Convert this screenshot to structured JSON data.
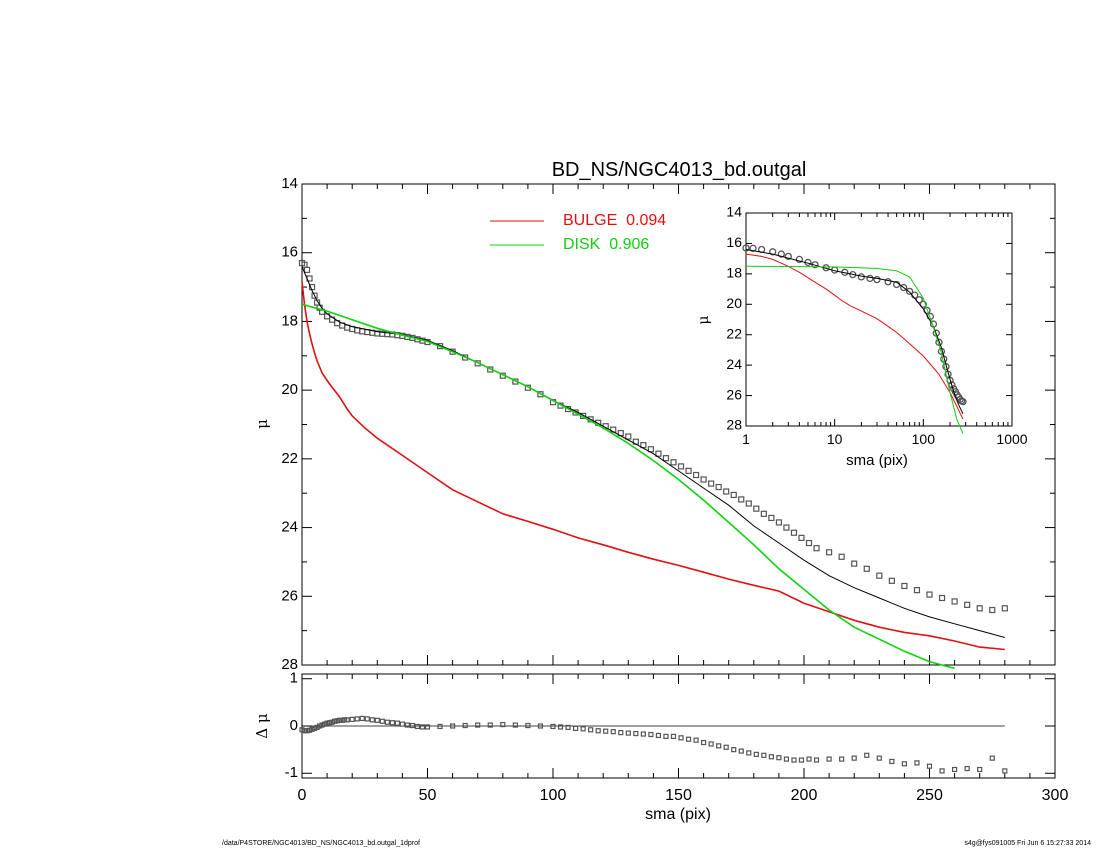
{
  "chart_data": [
    {
      "id": "main",
      "type": "line",
      "title": "BD_NS/NGC4013_bd.outgal",
      "xlabel": "",
      "ylabel": "μ",
      "xlim": [
        0,
        300
      ],
      "ylim": [
        28,
        14
      ],
      "y_inverted": true,
      "xticks": [
        0,
        50,
        100,
        150,
        200,
        250,
        300
      ],
      "yticks": [
        "14",
        "16",
        "18",
        "20",
        "22",
        "24",
        "26",
        "28"
      ],
      "legend_position": "top-center",
      "colors": {
        "data": "#555555",
        "model": "#000000",
        "bulge": "#e01010",
        "disk": "#10d010"
      },
      "legend": [
        {
          "label": "BULGE  0.094",
          "color": "#e01010"
        },
        {
          "label": "DISK  0.906",
          "color": "#10d010"
        }
      ],
      "series": [
        {
          "role": "data",
          "marker": "square",
          "x": [
            0,
            1,
            2,
            3,
            4,
            5,
            6,
            7,
            8,
            10,
            12,
            14,
            16,
            18,
            20,
            22,
            24,
            26,
            28,
            30,
            32,
            34,
            36,
            38,
            40,
            42,
            44,
            46,
            48,
            50,
            55,
            60,
            65,
            70,
            75,
            80,
            85,
            90,
            95,
            100,
            103,
            106,
            109,
            112,
            115,
            118,
            121,
            124,
            127,
            130,
            133,
            136,
            139,
            142,
            145,
            148,
            151,
            154,
            157,
            160,
            163,
            166,
            169,
            172,
            175,
            178,
            181,
            184,
            187,
            190,
            193,
            196,
            199,
            202,
            205,
            210,
            215,
            220,
            225,
            230,
            235,
            240,
            245,
            250,
            255,
            260,
            265,
            270,
            275,
            280
          ],
          "y": [
            16.3,
            16.35,
            16.5,
            16.75,
            17.0,
            17.25,
            17.45,
            17.6,
            17.72,
            17.85,
            17.95,
            18.05,
            18.12,
            18.18,
            18.22,
            18.26,
            18.29,
            18.31,
            18.33,
            18.35,
            18.36,
            18.37,
            18.38,
            18.4,
            18.42,
            18.45,
            18.48,
            18.52,
            18.56,
            18.6,
            18.72,
            18.88,
            19.05,
            19.22,
            19.4,
            19.58,
            19.75,
            19.93,
            20.12,
            20.35,
            20.45,
            20.55,
            20.65,
            20.75,
            20.85,
            20.95,
            21.05,
            21.15,
            21.25,
            21.35,
            21.5,
            21.6,
            21.72,
            21.85,
            21.98,
            22.1,
            22.22,
            22.35,
            22.47,
            22.6,
            22.72,
            22.82,
            22.95,
            23.05,
            23.18,
            23.3,
            23.45,
            23.6,
            23.72,
            23.85,
            24.0,
            24.15,
            24.3,
            24.45,
            24.6,
            24.72,
            24.85,
            25.05,
            25.2,
            25.4,
            25.55,
            25.7,
            25.82,
            25.95,
            26.05,
            26.15,
            26.25,
            26.35,
            26.4,
            26.35
          ]
        },
        {
          "role": "model",
          "name": "",
          "x": [
            0,
            2,
            4,
            6,
            8,
            10,
            15,
            20,
            30,
            40,
            50,
            60,
            70,
            80,
            90,
            100,
            110,
            120,
            130,
            140,
            150,
            160,
            170,
            180,
            190,
            200,
            210,
            220,
            230,
            240,
            250,
            260,
            270,
            280
          ],
          "y": [
            16.4,
            16.75,
            17.1,
            17.4,
            17.62,
            17.78,
            18.02,
            18.15,
            18.3,
            18.38,
            18.55,
            18.85,
            19.2,
            19.55,
            19.9,
            20.3,
            20.65,
            21.05,
            21.45,
            21.85,
            22.35,
            22.85,
            23.35,
            23.95,
            24.45,
            24.95,
            25.4,
            25.75,
            26.05,
            26.35,
            26.6,
            26.8,
            27.0,
            27.2
          ]
        },
        {
          "role": "bulge",
          "name": "BULGE  0.094",
          "x": [
            0,
            1,
            2,
            3,
            4,
            5,
            6,
            8,
            10,
            12,
            14,
            15,
            18,
            20,
            25,
            30,
            40,
            50,
            60,
            70,
            80,
            90,
            100,
            110,
            120,
            130,
            140,
            150,
            160,
            170,
            180,
            190,
            200,
            210,
            220,
            230,
            240,
            250,
            260,
            270,
            280
          ],
          "y": [
            16.85,
            17.5,
            18.0,
            18.35,
            18.65,
            18.92,
            19.15,
            19.5,
            19.72,
            19.92,
            20.1,
            20.2,
            20.55,
            20.75,
            21.1,
            21.4,
            21.9,
            22.4,
            22.9,
            23.25,
            23.6,
            23.82,
            24.05,
            24.3,
            24.5,
            24.72,
            24.92,
            25.1,
            25.3,
            25.5,
            25.68,
            25.85,
            26.2,
            26.45,
            26.7,
            26.9,
            27.05,
            27.15,
            27.3,
            27.48,
            27.55
          ]
        },
        {
          "role": "disk",
          "name": "DISK  0.906",
          "x": [
            0,
            10,
            20,
            30,
            40,
            50,
            60,
            70,
            80,
            90,
            100,
            110,
            120,
            130,
            140,
            150,
            160,
            170,
            180,
            190,
            200,
            210,
            220,
            230,
            240,
            250,
            260
          ],
          "y": [
            17.5,
            17.7,
            17.95,
            18.2,
            18.4,
            18.58,
            18.88,
            19.2,
            19.55,
            19.9,
            20.3,
            20.7,
            21.1,
            21.55,
            22.05,
            22.6,
            23.2,
            23.85,
            24.5,
            25.2,
            25.8,
            26.4,
            26.9,
            27.25,
            27.6,
            27.9,
            28.1
          ]
        }
      ]
    },
    {
      "id": "inset",
      "type": "line",
      "title": "",
      "xlabel": "sma (pix)",
      "ylabel": "μ",
      "x_scale": "log",
      "xlim": [
        1,
        1000
      ],
      "ylim": [
        28,
        14
      ],
      "y_inverted": true,
      "xticks": [
        "1",
        "10",
        "100",
        "1000"
      ],
      "yticks": [
        "14",
        "16",
        "18",
        "20",
        "22",
        "24",
        "26",
        "28"
      ],
      "series": [
        {
          "role": "data",
          "marker": "circle",
          "x": [
            1,
            1.2,
            1.5,
            2,
            2.5,
            3,
            4,
            5,
            6,
            8,
            10,
            13,
            16,
            20,
            25,
            30,
            40,
            50,
            60,
            70,
            80,
            90,
            100,
            110,
            120,
            130,
            140,
            150,
            160,
            170,
            180,
            190,
            200,
            210,
            220,
            230,
            240,
            250,
            260,
            270,
            280
          ],
          "y": [
            16.3,
            16.32,
            16.4,
            16.55,
            16.7,
            16.85,
            17.05,
            17.25,
            17.4,
            17.6,
            17.75,
            17.9,
            18.05,
            18.2,
            18.3,
            18.38,
            18.52,
            18.7,
            18.9,
            19.15,
            19.4,
            19.7,
            20.0,
            20.4,
            20.8,
            21.3,
            21.9,
            22.5,
            23.1,
            23.6,
            24.1,
            24.6,
            25.0,
            25.3,
            25.55,
            25.75,
            25.95,
            26.1,
            26.25,
            26.35,
            26.4
          ]
        },
        {
          "role": "model",
          "name": "",
          "x": [
            1,
            2,
            5,
            10,
            20,
            30,
            50,
            70,
            100,
            130,
            160,
            190,
            220,
            250,
            280
          ],
          "y": [
            16.4,
            16.7,
            17.3,
            17.8,
            18.15,
            18.3,
            18.55,
            19.2,
            20.3,
            21.45,
            22.85,
            24.45,
            25.75,
            26.6,
            27.2
          ]
        },
        {
          "role": "bulge",
          "name": "",
          "x": [
            1,
            1.5,
            2,
            3,
            4,
            5,
            6,
            8,
            10,
            12,
            15,
            20,
            30,
            50,
            70,
            100,
            150,
            200,
            250,
            280
          ],
          "y": [
            16.7,
            16.85,
            17.05,
            17.5,
            17.9,
            18.25,
            18.55,
            19.0,
            19.4,
            19.75,
            20.1,
            20.45,
            20.95,
            21.85,
            22.6,
            23.4,
            24.6,
            25.8,
            26.95,
            27.55
          ]
        },
        {
          "role": "disk",
          "name": "",
          "x": [
            1,
            5,
            10,
            20,
            30,
            50,
            70,
            100,
            130,
            160,
            200,
            240,
            280
          ],
          "y": [
            17.5,
            17.52,
            17.55,
            17.6,
            17.65,
            17.8,
            18.2,
            19.6,
            21.5,
            23.2,
            25.8,
            27.6,
            28.5
          ]
        }
      ]
    },
    {
      "id": "residual",
      "type": "scatter",
      "title": "",
      "xlabel": "sma (pix)",
      "ylabel": "Δ μ",
      "xlim": [
        0,
        300
      ],
      "ylim": [
        -1.1,
        1.1
      ],
      "xticks": [
        "0",
        "50",
        "100",
        "150",
        "200",
        "250",
        "300"
      ],
      "yticks": [
        "1",
        "0",
        "-1"
      ],
      "zero_line": true,
      "series": [
        {
          "role": "residual",
          "marker": "square",
          "x": [
            0,
            1,
            2,
            3,
            4,
            5,
            6,
            7,
            8,
            9,
            10,
            11,
            12,
            13,
            14,
            15,
            16,
            17,
            18,
            20,
            22,
            24,
            26,
            28,
            30,
            32,
            34,
            36,
            38,
            40,
            42,
            44,
            46,
            48,
            50,
            55,
            60,
            65,
            70,
            75,
            80,
            85,
            90,
            95,
            100,
            103,
            106,
            109,
            112,
            115,
            118,
            121,
            124,
            127,
            130,
            133,
            136,
            139,
            142,
            145,
            148,
            151,
            154,
            157,
            160,
            163,
            166,
            169,
            172,
            175,
            178,
            181,
            184,
            187,
            190,
            193,
            196,
            199,
            202,
            205,
            210,
            215,
            220,
            225,
            230,
            235,
            240,
            245,
            250,
            255,
            260,
            265,
            270,
            275,
            280
          ],
          "y": [
            -0.08,
            -0.1,
            -0.1,
            -0.09,
            -0.07,
            -0.05,
            -0.03,
            0.0,
            0.02,
            0.04,
            0.06,
            0.07,
            0.08,
            0.1,
            0.11,
            0.12,
            0.12,
            0.13,
            0.13,
            0.14,
            0.15,
            0.16,
            0.15,
            0.13,
            0.12,
            0.1,
            0.08,
            0.07,
            0.06,
            0.04,
            0.02,
            0.01,
            -0.01,
            -0.02,
            -0.02,
            -0.01,
            0.0,
            0.01,
            0.02,
            0.02,
            0.03,
            0.02,
            0.01,
            0.0,
            -0.01,
            -0.02,
            -0.03,
            -0.05,
            -0.06,
            -0.08,
            -0.1,
            -0.11,
            -0.12,
            -0.14,
            -0.15,
            -0.16,
            -0.17,
            -0.18,
            -0.2,
            -0.22,
            -0.22,
            -0.25,
            -0.28,
            -0.3,
            -0.35,
            -0.38,
            -0.42,
            -0.45,
            -0.5,
            -0.53,
            -0.57,
            -0.6,
            -0.62,
            -0.65,
            -0.67,
            -0.7,
            -0.72,
            -0.72,
            -0.7,
            -0.72,
            -0.7,
            -0.7,
            -0.68,
            -0.62,
            -0.68,
            -0.75,
            -0.8,
            -0.78,
            -0.85,
            -0.95,
            -0.92,
            -0.9,
            -0.92,
            -0.68,
            -0.95
          ]
        }
      ]
    }
  ],
  "footer": {
    "left": "/data/P4STORE/NGC4013/BD_NS/NGC4013_bd.outgal_1dprof",
    "right": "s4g@fys091005  Fri Jun  6 15:27:33 2014"
  }
}
